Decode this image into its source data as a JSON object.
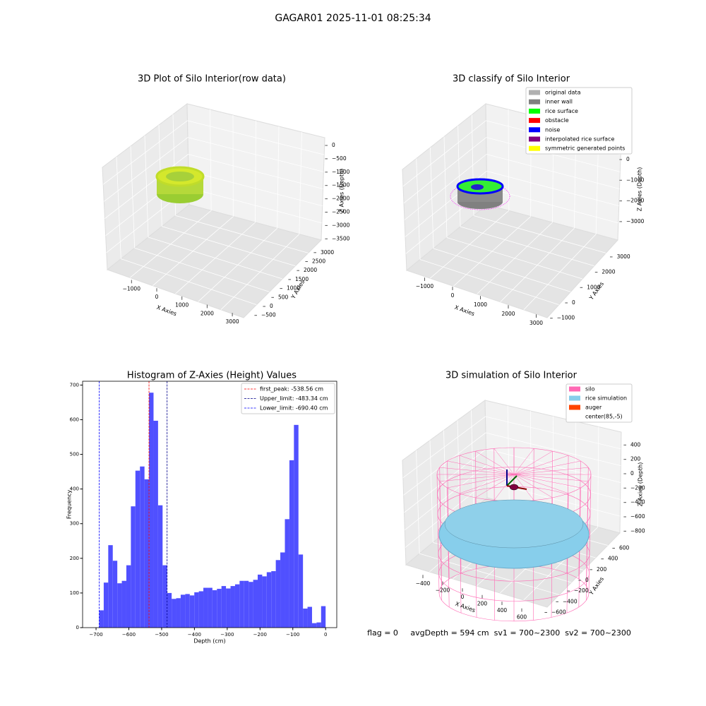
{
  "suptitle": "GAGAR01 2025-11-01 08:25:34",
  "footer": "flag = 0     avgDepth = 594 cm  sv1 = 700~2300  sv2 = 700~2300",
  "chart_data": [
    {
      "type": "scatter3d",
      "title": "3D Plot of Silo Interior(row data)",
      "xlabel": "X Axies",
      "ylabel": "Y Axies",
      "zlabel": "Z Axies (Depth)",
      "xticks": [
        {
          "value": -1000,
          "label": "−1000"
        },
        0,
        1000,
        2000,
        3000
      ],
      "yticks": [
        {
          "value": -500,
          "label": "−500"
        },
        0,
        500,
        1000,
        1500,
        2000,
        2500,
        3000
      ],
      "zticks": [
        0,
        {
          "value": -500,
          "label": "−500"
        },
        {
          "value": -1000,
          "label": "−1000"
        },
        {
          "value": -1500,
          "label": "−1500"
        },
        {
          "value": -2000,
          "label": "−2000"
        },
        {
          "value": -2500,
          "label": "−2500"
        },
        {
          "value": -3000,
          "label": "−3000"
        },
        {
          "value": -3500,
          "label": "−3500"
        }
      ]
    },
    {
      "type": "scatter3d",
      "title": "3D classify of Silo Interior",
      "xlabel": "X Axies",
      "ylabel": "Y Axies",
      "zlabel": "Z Axies (Depth)",
      "xticks": [
        {
          "value": -1000,
          "label": "−1000"
        },
        0,
        1000,
        2000,
        3000
      ],
      "yticks": [
        {
          "value": -1000,
          "label": "−1000"
        },
        0,
        1000,
        2000,
        3000
      ],
      "zticks": [
        0,
        {
          "value": -1000,
          "label": "−1000"
        },
        {
          "value": -2000,
          "label": "−2000"
        },
        {
          "value": -3000,
          "label": "−3000"
        }
      ],
      "legend": [
        {
          "name": "original data",
          "color": "#b0b0b0"
        },
        {
          "name": "inner wall",
          "color": "#808080"
        },
        {
          "name": "rice surface",
          "color": "#00ff00"
        },
        {
          "name": "obstacle",
          "color": "#ff0000"
        },
        {
          "name": "noise",
          "color": "#0000ff"
        },
        {
          "name": "interpolated rice surface",
          "color": "#800080"
        },
        {
          "name": "symmetric generated points",
          "color": "#ffff00"
        }
      ]
    },
    {
      "type": "histogram",
      "title": "Histogram of Z-Axies (Height) Values",
      "xlabel": "Depth (cm)",
      "ylabel": "Frequency",
      "color": "#5050ff",
      "bins": [
        -690.4,
        -676.6,
        -662.8,
        -649.0,
        -635.2,
        -621.4,
        -607.6,
        -593.8,
        -580.0,
        -566.1,
        -552.3,
        -538.5,
        -524.7,
        -510.9,
        -497.1,
        -483.3,
        -469.5,
        -455.7,
        -441.9,
        -428.0,
        -414.2,
        -400.4,
        -386.6,
        -372.8,
        -359.0,
        -345.2,
        -331.4,
        -317.6,
        -303.8,
        -289.9,
        -276.1,
        -262.3,
        -248.5,
        -234.7,
        -220.9,
        -207.1,
        -193.3,
        -179.5,
        -165.7,
        -151.9,
        -138.1,
        -124.2,
        -110.4,
        -96.6,
        -82.8,
        -69.0,
        -55.2,
        -41.4,
        -27.6,
        -13.8,
        0.0
      ],
      "counts": [
        50,
        130,
        238,
        193,
        128,
        135,
        180,
        350,
        453,
        465,
        428,
        678,
        597,
        353,
        180,
        100,
        83,
        85,
        95,
        97,
        93,
        102,
        105,
        115,
        115,
        108,
        112,
        120,
        113,
        120,
        125,
        135,
        135,
        132,
        138,
        153,
        148,
        160,
        163,
        195,
        217,
        313,
        483,
        585,
        211,
        55,
        60,
        13,
        15,
        62
      ],
      "lines": [
        {
          "name": "first_peak: -538.56 cm",
          "value": -538.56,
          "color": "#ff0000"
        },
        {
          "name": "Upper_limit: -483.34 cm",
          "value": -483.34,
          "color": "#00008b"
        },
        {
          "name": "Lower_limit: -690.40 cm",
          "value": -690.4,
          "color": "#0000ff"
        }
      ],
      "xlim": [
        -741,
        34
      ],
      "ylim": [
        0,
        711
      ],
      "xticks": [
        {
          "value": -700,
          "label": "−700"
        },
        {
          "value": -600,
          "label": "−600"
        },
        {
          "value": -500,
          "label": "−500"
        },
        {
          "value": -400,
          "label": "−400"
        },
        {
          "value": -300,
          "label": "−300"
        },
        {
          "value": -200,
          "label": "−200"
        },
        {
          "value": -100,
          "label": "−100"
        },
        0
      ],
      "yticks": [
        0,
        100,
        200,
        300,
        400,
        500,
        600,
        700
      ]
    },
    {
      "type": "surface3d",
      "title": "3D simulation of Silo Interior",
      "xlabel": "X Axies",
      "ylabel": "Y Axies",
      "zlabel": "Z Axies (Depth)",
      "xticks": [
        {
          "value": -400,
          "label": "−400"
        },
        {
          "value": -200,
          "label": "−200"
        },
        0,
        200,
        400,
        600
      ],
      "yticks": [
        {
          "value": -600,
          "label": "−600"
        },
        {
          "value": -400,
          "label": "−400"
        },
        {
          "value": -200,
          "label": "−200"
        },
        0,
        200,
        400,
        600
      ],
      "zticks": [
        400,
        200,
        0,
        {
          "value": -200,
          "label": "−200"
        },
        {
          "value": -400,
          "label": "−400"
        },
        {
          "value": -600,
          "label": "−600"
        },
        {
          "value": -800,
          "label": "−800"
        }
      ],
      "legend": [
        {
          "name": "silo",
          "color": "#ff69b4"
        },
        {
          "name": "rice simulation",
          "color": "#87ceeb"
        },
        {
          "name": "auger",
          "color": "#ff4500"
        },
        {
          "name": "center(85,-5)",
          "color": "#ffffff"
        }
      ]
    }
  ]
}
